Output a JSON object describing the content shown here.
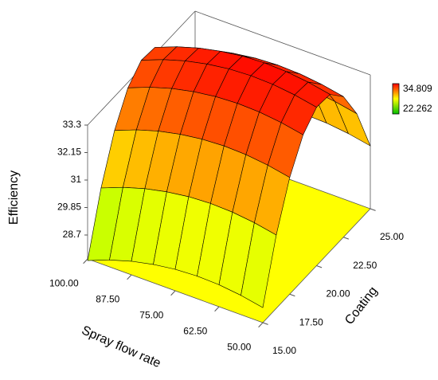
{
  "chart_data": {
    "type": "surface",
    "zlabel": "Efficiency",
    "xlabel": "Spray flow rate",
    "ylabel": "Coating",
    "xlim": [
      50,
      100
    ],
    "ylim": [
      15,
      25
    ],
    "zlim": [
      27.7,
      33.3
    ],
    "xticks": [
      {
        "value": 100,
        "label": "100.00"
      },
      {
        "value": 87.5,
        "label": "87.50"
      },
      {
        "value": 75,
        "label": "75.00"
      },
      {
        "value": 62.5,
        "label": "62.50"
      },
      {
        "value": 50,
        "label": "50.00"
      }
    ],
    "yticks": [
      {
        "value": 15,
        "label": "15.00"
      },
      {
        "value": 17.5,
        "label": "17.50"
      },
      {
        "value": 20,
        "label": "20.00"
      },
      {
        "value": 22.5,
        "label": "22.50"
      },
      {
        "value": 25,
        "label": "25.00"
      }
    ],
    "zticks": [
      28.7,
      29.85,
      31,
      32.15,
      33.3
    ],
    "colorbar": {
      "max": 34.809,
      "min": 22.262,
      "max_color": "#ff0000",
      "min_color": "#009900"
    },
    "floor_color": "#ffff00",
    "x": [
      50,
      56.25,
      62.5,
      68.75,
      75,
      81.25,
      87.5,
      93.75,
      100
    ],
    "y": [
      15,
      16.25,
      17.5,
      18.75,
      20,
      21.25,
      22.5,
      23.75,
      25
    ],
    "z": [
      [
        28.33,
        30.77,
        32.58,
        33.77,
        34.33,
        34.27,
        33.58,
        32.27,
        30.33
      ],
      [
        28.51,
        30.95,
        32.76,
        33.95,
        34.51,
        34.45,
        33.76,
        32.45,
        30.51
      ],
      [
        28.62,
        31.06,
        32.87,
        34.06,
        34.62,
        34.56,
        33.87,
        32.56,
        30.62
      ],
      [
        28.65,
        31.09,
        32.9,
        34.09,
        34.65,
        34.59,
        33.9,
        32.59,
        30.65
      ],
      [
        28.6,
        31.04,
        32.85,
        34.04,
        34.6,
        34.54,
        33.85,
        32.54,
        30.6
      ],
      [
        28.47,
        30.91,
        32.72,
        33.91,
        34.47,
        34.41,
        33.72,
        32.41,
        30.47
      ],
      [
        28.27,
        30.71,
        32.52,
        33.71,
        34.27,
        34.21,
        33.52,
        32.21,
        30.27
      ],
      [
        27.99,
        30.43,
        32.24,
        33.43,
        33.99,
        33.93,
        33.24,
        31.93,
        29.99
      ],
      [
        27.63,
        30.07,
        31.88,
        33.07,
        33.63,
        33.57,
        32.88,
        31.57,
        29.63
      ]
    ]
  }
}
